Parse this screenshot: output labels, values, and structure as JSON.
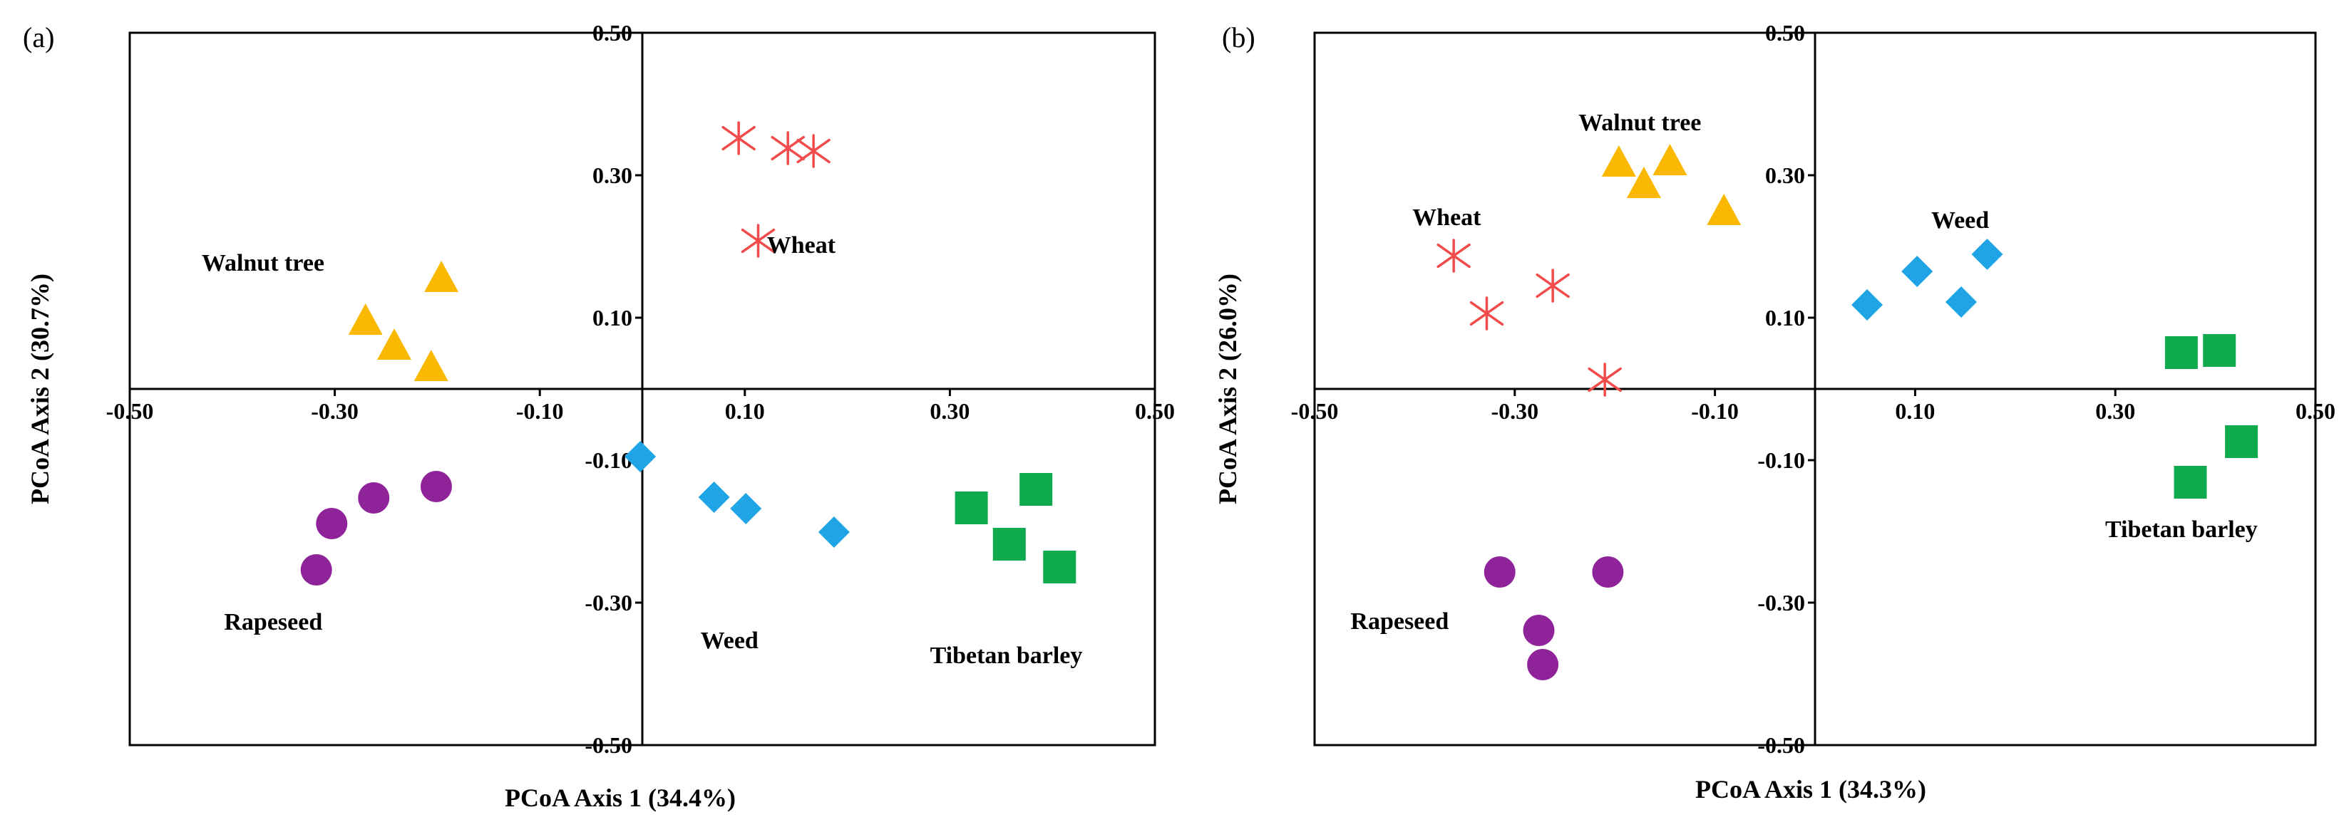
{
  "figure": {
    "type": "pcoa-scatter-panels"
  },
  "colors": {
    "Wheat": "#f24b4b",
    "Walnut tree": "#fbb800",
    "Weed": "#1fa5e6",
    "Tibetan barley": "#10aa4e",
    "Rapeseed": "#8f239a"
  },
  "chart_data": [
    {
      "type": "scatter",
      "panel_label": "(a)",
      "xlabel": "PCoA Axis 1 (34.4%)",
      "ylabel": "PCoA Axis 2 (30.7%)",
      "xlim": [
        -0.5,
        0.5
      ],
      "ylim": [
        -0.5,
        0.5
      ],
      "xticks": [
        -0.5,
        -0.3,
        -0.1,
        0.1,
        0.3,
        0.5
      ],
      "yticks": [
        0.5,
        0.3,
        0.1,
        -0.1,
        -0.3,
        -0.5
      ],
      "xtick_labels": [
        "-0.50",
        "-0.30",
        "-0.10",
        "0.10",
        "0.30",
        "0.50"
      ],
      "ytick_labels": [
        "0.50",
        "0.30",
        "0.10",
        "-0.10",
        "-0.30",
        "-0.50"
      ],
      "series": [
        {
          "name": "Wheat",
          "marker": "asterisk",
          "label_text": "Wheat",
          "points": [
            [
              0.094,
              0.352
            ],
            [
              0.142,
              0.338
            ],
            [
              0.167,
              0.334
            ],
            [
              0.113,
              0.208
            ]
          ]
        },
        {
          "name": "Walnut tree",
          "marker": "triangle",
          "label_text": "Walnut tree",
          "points": [
            [
              -0.196,
              0.158
            ],
            [
              -0.27,
              0.098
            ],
            [
              -0.242,
              0.063
            ],
            [
              -0.206,
              0.033
            ]
          ]
        },
        {
          "name": "Weed",
          "marker": "diamond",
          "label_text": "Weed",
          "points": [
            [
              -0.002,
              -0.095
            ],
            [
              0.07,
              -0.152
            ],
            [
              0.101,
              -0.168
            ],
            [
              0.187,
              -0.201
            ]
          ]
        },
        {
          "name": "Tibetan barley",
          "marker": "square",
          "label_text": "Tibetan barley",
          "points": [
            [
              0.321,
              -0.167
            ],
            [
              0.384,
              -0.141
            ],
            [
              0.358,
              -0.218
            ],
            [
              0.407,
              -0.25
            ]
          ]
        },
        {
          "name": "Rapeseed",
          "marker": "circle",
          "label_text": "Rapeseed",
          "points": [
            [
              -0.201,
              -0.137
            ],
            [
              -0.262,
              -0.153
            ],
            [
              -0.303,
              -0.189
            ],
            [
              -0.318,
              -0.254
            ]
          ]
        }
      ],
      "labels": [
        {
          "text": "Walnut tree",
          "x": -0.37,
          "y": 0.178
        },
        {
          "text": "Wheat",
          "x": 0.155,
          "y": 0.203
        },
        {
          "text": "Rapeseed",
          "x": -0.36,
          "y": -0.326
        },
        {
          "text": "Weed",
          "x": 0.085,
          "y": -0.352
        },
        {
          "text": "Tibetan barley",
          "x": 0.355,
          "y": -0.373
        }
      ]
    },
    {
      "type": "scatter",
      "panel_label": "(b)",
      "xlabel": "PCoA Axis 1 (34.3%)",
      "ylabel": "PCoA Axis 2 (26.0%)",
      "xlim": [
        -0.5,
        0.5
      ],
      "ylim": [
        -0.5,
        0.5
      ],
      "xticks": [
        -0.5,
        -0.3,
        -0.1,
        0.1,
        0.3,
        0.5
      ],
      "yticks": [
        0.5,
        0.3,
        0.1,
        -0.1,
        -0.3,
        -0.5
      ],
      "xtick_labels": [
        "-0.50",
        "-0.30",
        "-0.10",
        "0.10",
        "0.30",
        "0.50"
      ],
      "ytick_labels": [
        "0.50",
        "0.30",
        "0.10",
        "-0.10",
        "-0.30",
        "-0.50"
      ],
      "series": [
        {
          "name": "Wheat",
          "marker": "asterisk",
          "label_text": "Wheat",
          "points": [
            [
              -0.361,
              0.187
            ],
            [
              -0.262,
              0.145
            ],
            [
              -0.328,
              0.106
            ],
            [
              -0.21,
              0.013
            ]
          ]
        },
        {
          "name": "Walnut tree",
          "marker": "triangle",
          "label_text": "Walnut tree",
          "points": [
            [
              -0.196,
              0.32
            ],
            [
              -0.145,
              0.322
            ],
            [
              -0.171,
              0.29
            ],
            [
              -0.091,
              0.252
            ]
          ]
        },
        {
          "name": "Weed",
          "marker": "diamond",
          "label_text": "Weed",
          "points": [
            [
              0.052,
              0.118
            ],
            [
              0.102,
              0.165
            ],
            [
              0.146,
              0.122
            ],
            [
              0.172,
              0.189
            ]
          ]
        },
        {
          "name": "Tibetan barley",
          "marker": "square",
          "label_text": "Tibetan barley",
          "points": [
            [
              0.366,
              0.051
            ],
            [
              0.404,
              0.054
            ],
            [
              0.426,
              -0.074
            ],
            [
              0.375,
              -0.131
            ]
          ]
        },
        {
          "name": "Rapeseed",
          "marker": "circle",
          "label_text": "Rapeseed",
          "points": [
            [
              -0.315,
              -0.257
            ],
            [
              -0.207,
              -0.257
            ],
            [
              -0.276,
              -0.339
            ],
            [
              -0.272,
              -0.387
            ]
          ]
        }
      ],
      "labels": [
        {
          "text": "Walnut tree",
          "x": -0.175,
          "y": 0.375
        },
        {
          "text": "Wheat",
          "x": -0.368,
          "y": 0.242
        },
        {
          "text": "Weed",
          "x": 0.145,
          "y": 0.238
        },
        {
          "text": "Tibetan barley",
          "x": 0.366,
          "y": -0.196
        },
        {
          "text": "Rapeseed",
          "x": -0.415,
          "y": -0.325
        }
      ]
    }
  ]
}
